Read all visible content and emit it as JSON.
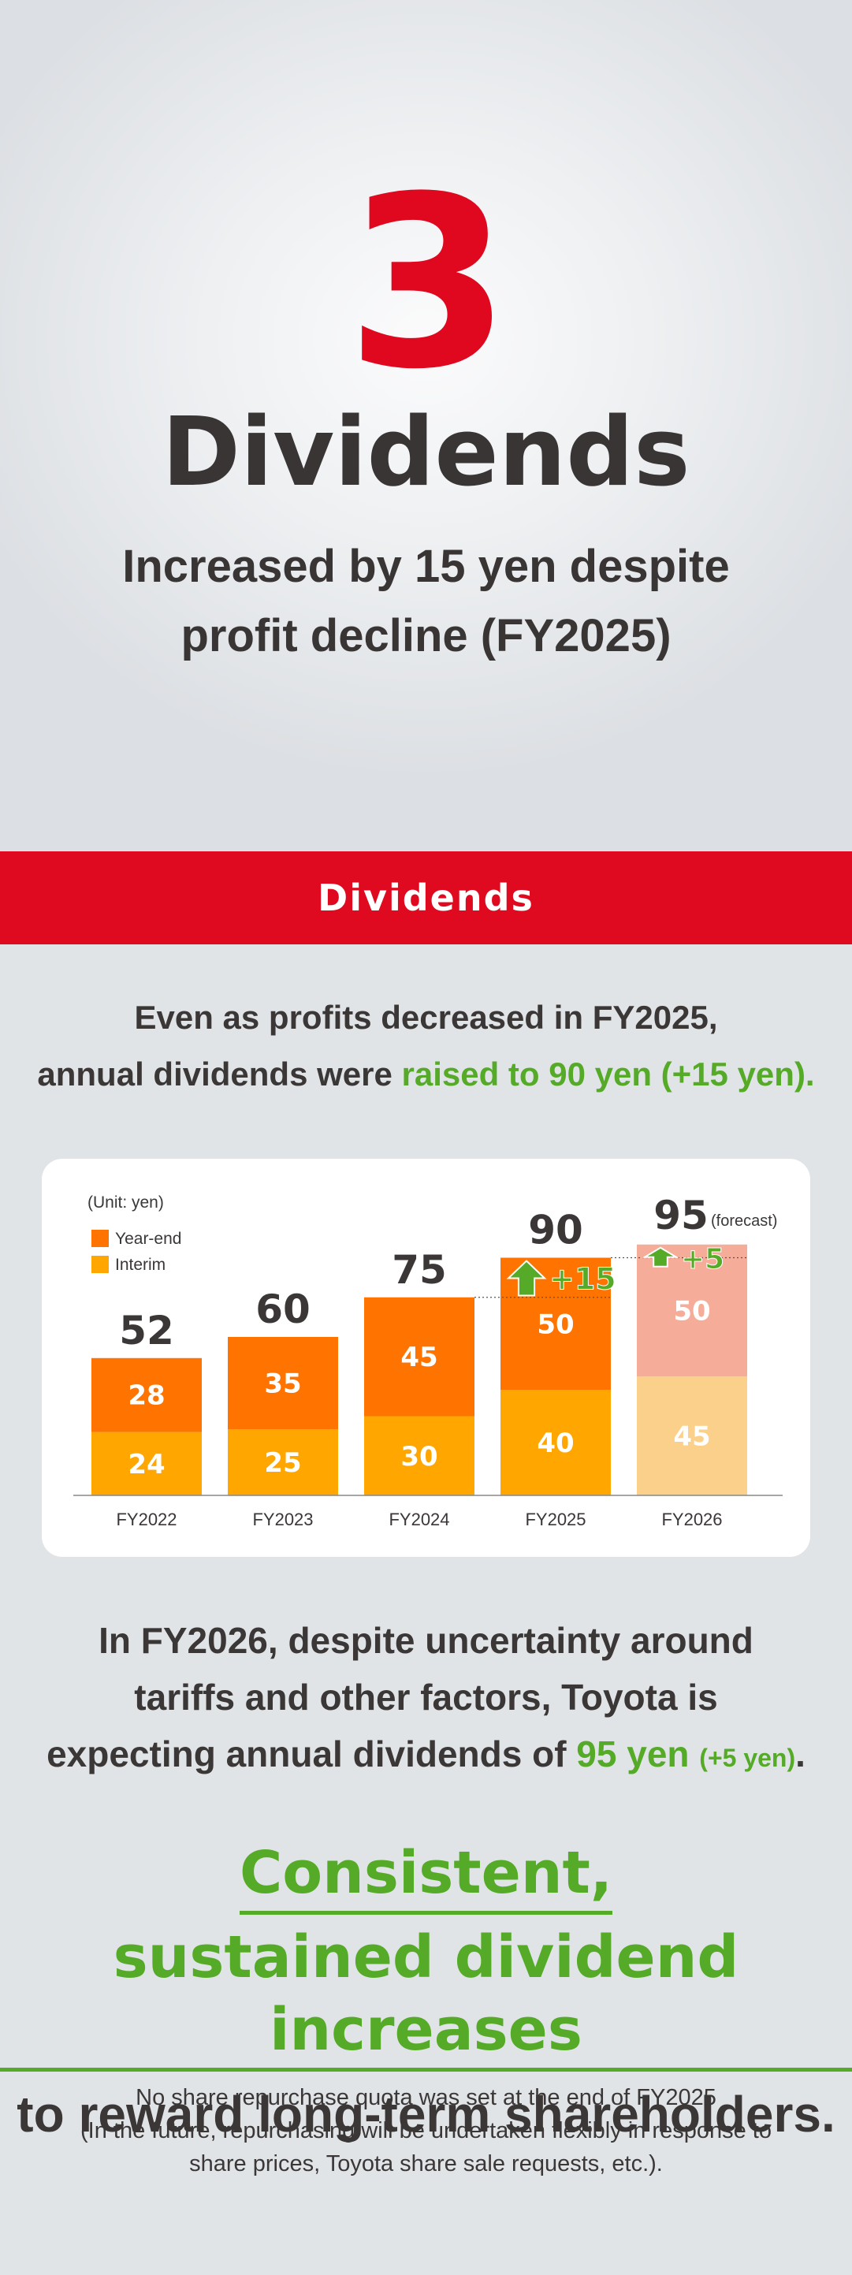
{
  "hero": {
    "number": "3",
    "title": "Dividends",
    "subtitle_line1": "Increased by 15 yen despite",
    "subtitle_line2": "profit decline (FY2025)"
  },
  "section_band": {
    "label": "Dividends"
  },
  "intro": {
    "line1": "Even as profits decreased in FY2025,",
    "line2_plain": "annual dividends were ",
    "line2_highlight": "raised to 90 yen (+15 yen)."
  },
  "chart_data": {
    "type": "bar",
    "stacked": true,
    "unit_label": "(Unit: yen)",
    "categories": [
      "FY2022",
      "FY2023",
      "FY2024",
      "FY2025",
      "FY2026"
    ],
    "series": [
      {
        "name": "Interim",
        "values": [
          24,
          25,
          30,
          40,
          45
        ],
        "color": "#ffa600",
        "forecast_color": "#fbd08a"
      },
      {
        "name": "Year-end",
        "values": [
          28,
          35,
          45,
          50,
          50
        ],
        "color": "#ff7400",
        "forecast_color": "#f5ad99"
      }
    ],
    "totals": [
      "52",
      "60",
      "75",
      "90",
      "95"
    ],
    "forecast_index": 4,
    "forecast_label": "(forecast)",
    "increase_labels": [
      {
        "index": 3,
        "text": "+15"
      },
      {
        "index": 4,
        "text": "+5"
      }
    ],
    "legend": [
      "Year-end",
      "Interim"
    ],
    "legend_position": "top-left",
    "ylim": [
      0,
      100
    ],
    "grid": false
  },
  "outro": {
    "line1": "In FY2026, despite uncertainty around",
    "line2": "tariffs and other factors, Toyota is",
    "line3_plain": "expecting annual dividends of ",
    "line3_highlight": "95 yen",
    "line3_small": "(+5 yen)",
    "line3_end": "."
  },
  "headline": {
    "green_line1": "Consistent,",
    "green_line2": "sustained dividend increases",
    "dark_line": "to reward long-term shareholders."
  },
  "note": {
    "line1": "No share repurchase quota was set at the end of FY2025",
    "line2": "(In the future, repurchasing will be undertaken flexibly in response to",
    "line3": "share prices, Toyota share sale requests, etc.)."
  },
  "colors": {
    "accent_red": "#df0a20",
    "number_red": "#e0081f",
    "accent_green": "#55ab27",
    "text_dark": "#3b3737"
  }
}
